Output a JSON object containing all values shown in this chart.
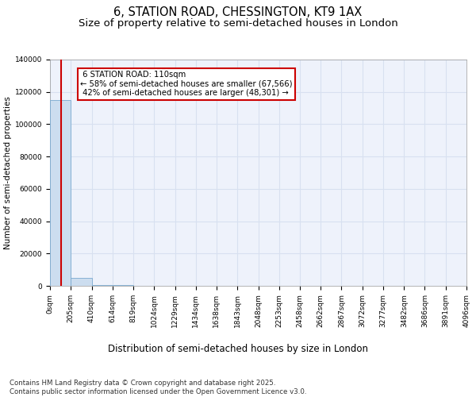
{
  "title": "6, STATION ROAD, CHESSINGTON, KT9 1AX",
  "subtitle": "Size of property relative to semi-detached houses in London",
  "xlabel": "Distribution of semi-detached houses by size in London",
  "ylabel": "Number of semi-detached properties",
  "property_size": 110,
  "property_label": "6 STATION ROAD: 110sqm",
  "pct_smaller": 58,
  "pct_larger": 42,
  "n_smaller": 67566,
  "n_larger": 48301,
  "bar_color": "#ccddef",
  "bar_edge_color": "#7aaad0",
  "line_color": "#cc0000",
  "annotation_border_color": "#cc0000",
  "annotation_bg": "#ffffff",
  "background_color": "#eef2fb",
  "grid_color": "#d8e0f0",
  "title_fontsize": 10.5,
  "subtitle_fontsize": 9.5,
  "xlabel_fontsize": 8.5,
  "ylabel_fontsize": 7.5,
  "tick_fontsize": 6.5,
  "footer_text": "Contains HM Land Registry data © Crown copyright and database right 2025.\nContains public sector information licensed under the Open Government Licence v3.0.",
  "bin_edges": [
    0,
    205,
    410,
    614,
    819,
    1024,
    1229,
    1434,
    1638,
    1843,
    2048,
    2253,
    2458,
    2662,
    2867,
    3072,
    3277,
    3482,
    3686,
    3891,
    4096
  ],
  "bin_heights": [
    115000,
    4800,
    700,
    250,
    120,
    70,
    45,
    32,
    24,
    18,
    14,
    12,
    10,
    9,
    8,
    7,
    6,
    5,
    5,
    4
  ],
  "ylim": [
    0,
    140000
  ],
  "yticks": [
    0,
    20000,
    40000,
    60000,
    80000,
    100000,
    120000,
    140000
  ]
}
